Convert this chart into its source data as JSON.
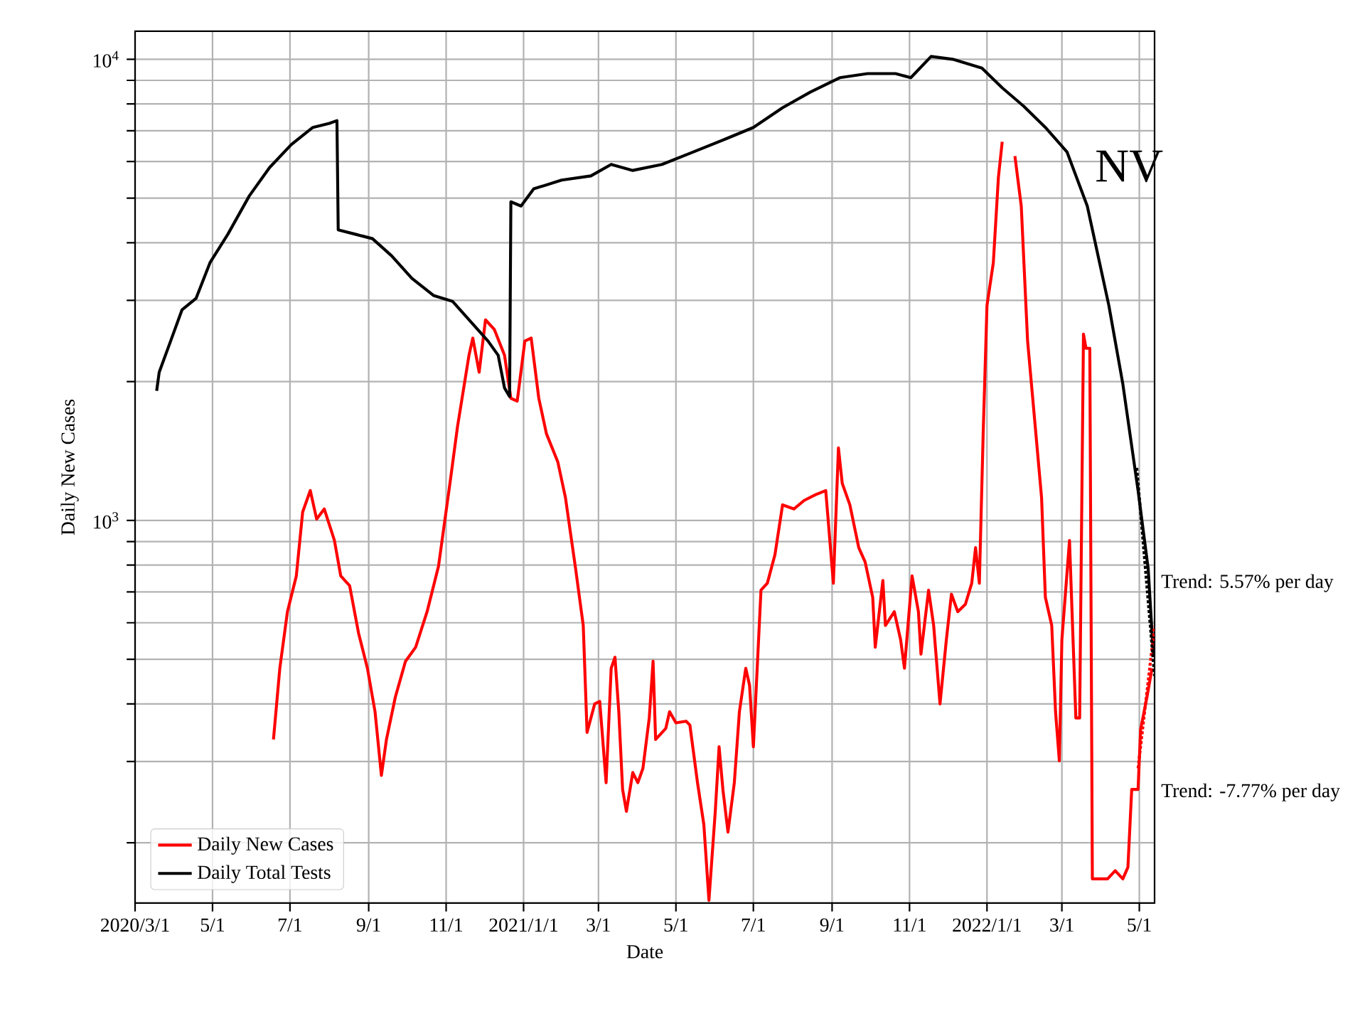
{
  "chart_data": {
    "type": "line",
    "xlabel": "Date",
    "ylabel": "Daily New Cases",
    "log": "y",
    "grid": true,
    "legend": "bottom left",
    "annotations": [
      "NV",
      "Trend: 5.57% per day",
      "Trend: -7.77% per day"
    ],
    "xlim": [
      "2020-03-01",
      "2022-05-13"
    ],
    "xticks": [
      {
        "value": "2020-03-01",
        "label": "2020/3/1"
      },
      {
        "value": "2020-05-01",
        "label": "5/1"
      },
      {
        "value": "2020-07-01",
        "label": "7/1"
      },
      {
        "value": "2020-09-01",
        "label": "9/1"
      },
      {
        "value": "2020-11-01",
        "label": "11/1"
      },
      {
        "value": "2021-01-01",
        "label": "2021/1/1"
      },
      {
        "value": "2021-03-01",
        "label": "3/1"
      },
      {
        "value": "2021-05-01",
        "label": "5/1"
      },
      {
        "value": "2021-07-01",
        "label": "7/1"
      },
      {
        "value": "2021-09-01",
        "label": "9/1"
      },
      {
        "value": "2021-11-01",
        "label": "11/1"
      },
      {
        "value": "2022-01-01",
        "label": "2022/1/1"
      },
      {
        "value": "2022-03-01",
        "label": "3/1"
      },
      {
        "value": "2022-05-01",
        "label": "5/1"
      }
    ],
    "ylim": [
      148,
      11500
    ],
    "yticks": [
      {
        "value": 200,
        "label": null
      },
      {
        "value": 300,
        "label": null
      },
      {
        "value": 400,
        "label": null
      },
      {
        "value": 500,
        "label": null
      },
      {
        "value": 600,
        "label": null
      },
      {
        "value": 700,
        "label": null
      },
      {
        "value": 800,
        "label": null
      },
      {
        "value": 900,
        "label": null
      },
      {
        "value": 1000,
        "label": "10$^{3}$"
      },
      {
        "value": 2000,
        "label": null
      },
      {
        "value": 3000,
        "label": null
      },
      {
        "value": 4000,
        "label": null
      },
      {
        "value": 5000,
        "label": null
      },
      {
        "value": 6000,
        "label": null
      },
      {
        "value": 7000,
        "label": null
      },
      {
        "value": 8000,
        "label": null
      },
      {
        "value": 9000,
        "label": null
      },
      {
        "value": 10000,
        "label": "10$^{4}$"
      }
    ],
    "series": [
      {
        "name": "Daily New Cases",
        "color": "#ff0000",
        "x": [
          "2020-06-18",
          "2020-06-23",
          "2020-06-29",
          "2020-07-06",
          "2020-07-11",
          "2020-07-17",
          "2020-07-22",
          "2020-07-28",
          "2020-08-05",
          "2020-08-10",
          "2020-08-17",
          "2020-08-24",
          "2020-08-31",
          "2020-09-06",
          "2020-09-11",
          "2020-09-15",
          "2020-09-22",
          "2020-09-30",
          "2020-10-08",
          "2020-10-17",
          "2020-10-26",
          "2020-11-04",
          "2020-11-10",
          "2020-11-19",
          "2020-11-22",
          "2020-11-27",
          "2020-12-02",
          "2020-12-09",
          "2020-12-17",
          "2020-12-22",
          "2020-12-27",
          "2021-01-02",
          "2021-01-07",
          "2021-01-13",
          "2021-01-19",
          "2021-01-28",
          "2021-02-03",
          "2021-02-11",
          "2021-02-17",
          "2021-02-20",
          "2021-02-26",
          "2021-03-02",
          "2021-03-07",
          "2021-03-11",
          "2021-03-14",
          "2021-03-17",
          "2021-03-20",
          "2021-03-23",
          "2021-03-28",
          "2021-04-01",
          "2021-04-05",
          "2021-04-10",
          "2021-04-13",
          "2021-04-15",
          "2021-04-23",
          "2021-04-26",
          "2021-05-01",
          "2021-05-09",
          "2021-05-12",
          "2021-05-18",
          "2021-05-23",
          "2021-05-27",
          "2021-06-01",
          "2021-06-04",
          "2021-06-07",
          "2021-06-11",
          "2021-06-16",
          "2021-06-20",
          "2021-06-25",
          "2021-06-28",
          "2021-07-01",
          "2021-07-07",
          "2021-07-12",
          "2021-07-18",
          "2021-07-24",
          "2021-08-02",
          "2021-08-10",
          "2021-08-19",
          "2021-08-27",
          "2021-09-02",
          "2021-09-06",
          "2021-09-09",
          "2021-09-15",
          "2021-09-22",
          "2021-09-27",
          "2021-10-03",
          "2021-10-05",
          "2021-10-11",
          "2021-10-13",
          "2021-10-20",
          "2021-10-25",
          "2021-10-28",
          "2021-11-03",
          "2021-11-08",
          "2021-11-10",
          "2021-11-16",
          "2021-11-20",
          "2021-11-25",
          "2021-11-30",
          "2021-12-04",
          "2021-12-09",
          "2021-12-15",
          "2021-12-20",
          "2021-12-23",
          "2021-12-26",
          "2021-12-29",
          "2022-01-01",
          "2022-01-06",
          "2022-01-10",
          "2022-01-13",
          "2022-01-16",
          "2022-01-19",
          "2022-01-22",
          "2022-01-23",
          "2022-01-28",
          "2022-02-02",
          "2022-02-08",
          "2022-02-13",
          "2022-02-16",
          "2022-02-21",
          "2022-02-24",
          "2022-02-27",
          "2022-03-01",
          "2022-03-07",
          "2022-03-10",
          "2022-03-12",
          "2022-03-15",
          "2022-03-18",
          "2022-03-20",
          "2022-03-23",
          "2022-03-25",
          "2022-04-06",
          "2022-04-12",
          "2022-04-18",
          "2022-04-22",
          "2022-04-25",
          "2022-04-30",
          "2022-05-02",
          "2022-05-07",
          "2022-05-11"
        ],
        "values": [
          335,
          478,
          634,
          758,
          1043,
          1161,
          1007,
          1059,
          905,
          758,
          722,
          570,
          478,
          385,
          280,
          335,
          414,
          495,
          531,
          634,
          796,
          1203,
          1600,
          2281,
          2485,
          2096,
          2723,
          2594,
          2281,
          1840,
          1815,
          2449,
          2485,
          1840,
          1542,
          1338,
          1120,
          785,
          592,
          347,
          400,
          405,
          270,
          478,
          505,
          385,
          261,
          234,
          284,
          270,
          290,
          373,
          495,
          335,
          354,
          385,
          364,
          367,
          360,
          270,
          219,
          150,
          234,
          323,
          261,
          211,
          270,
          385,
          478,
          439,
          323,
          706,
          731,
          843,
          1081,
          1059,
          1105,
          1137,
          1161,
          731,
          1436,
          1203,
          1081,
          873,
          813,
          681,
          531,
          741,
          592,
          634,
          551,
          478,
          758,
          634,
          513,
          706,
          592,
          400,
          551,
          692,
          634,
          658,
          731,
          873,
          731,
          1542,
          2924,
          3622,
          5546,
          6623,
          null,
          null,
          null,
          6166,
          4806,
          2449,
          1600,
          1120,
          681,
          592,
          385,
          301,
          551,
          905,
          531,
          373,
          373,
          2535,
          2362,
          2362,
          167,
          167,
          174,
          167,
          177,
          261,
          261,
          352,
          414,
          478
        ]
      },
      {
        "name": "Daily Total Tests",
        "color": "#000000",
        "x": [
          "2020-03-18",
          "2020-03-20",
          "2020-03-29",
          "2020-04-07",
          "2020-04-18",
          "2020-04-29",
          "2020-05-13",
          "2020-05-30",
          "2020-06-15",
          "2020-07-02",
          "2020-07-19",
          "2020-08-01",
          "2020-08-07",
          "2020-08-08",
          "2020-08-22",
          "2020-09-04",
          "2020-09-19",
          "2020-10-05",
          "2020-10-22",
          "2020-11-06",
          "2020-11-19",
          "2020-12-04",
          "2020-12-12",
          "2020-12-17",
          "2020-12-21",
          "2020-12-22",
          "2020-12-30",
          "2021-01-09",
          "2021-01-31",
          "2021-02-23",
          "2021-03-11",
          "2021-03-28",
          "2021-04-20",
          "2021-05-12",
          "2021-06-09",
          "2021-07-01",
          "2021-07-24",
          "2021-08-15",
          "2021-09-07",
          "2021-09-29",
          "2021-10-21",
          "2021-11-02",
          "2021-11-18",
          "2021-12-05",
          "2021-12-28",
          "2022-01-13",
          "2022-01-30",
          "2022-02-16",
          "2022-03-05",
          "2022-03-21",
          "2022-04-07",
          "2022-04-18",
          "2022-04-30",
          "2022-05-08",
          "2022-05-12"
        ],
        "values": [
          1910,
          2096,
          2449,
          2864,
          3030,
          3622,
          4171,
          5057,
          5826,
          6531,
          7115,
          7261,
          7362,
          4266,
          4171,
          4083,
          3750,
          3349,
          3076,
          2987,
          2723,
          2449,
          2281,
          1937,
          1856,
          4909,
          4806,
          5236,
          5470,
          5585,
          5916,
          5741,
          5916,
          6252,
          6714,
          7115,
          7852,
          8492,
          9120,
          9311,
          9311,
          9120,
          10140,
          10000,
          9572,
          8670,
          7907,
          7115,
          6299,
          4806,
          2924,
          1977,
          1161,
          785,
          513
        ]
      },
      {
        "color": "#ff0000",
        "line_style": "dotted",
        "x": [
          "2022-04-30",
          "2022-05-13"
        ],
        "values": [
          290,
          590
        ]
      },
      {
        "color": "#000000",
        "line_style": "dotted",
        "x": [
          "2022-04-29",
          "2022-05-13"
        ],
        "values": [
          1300,
          460
        ]
      }
    ]
  }
}
